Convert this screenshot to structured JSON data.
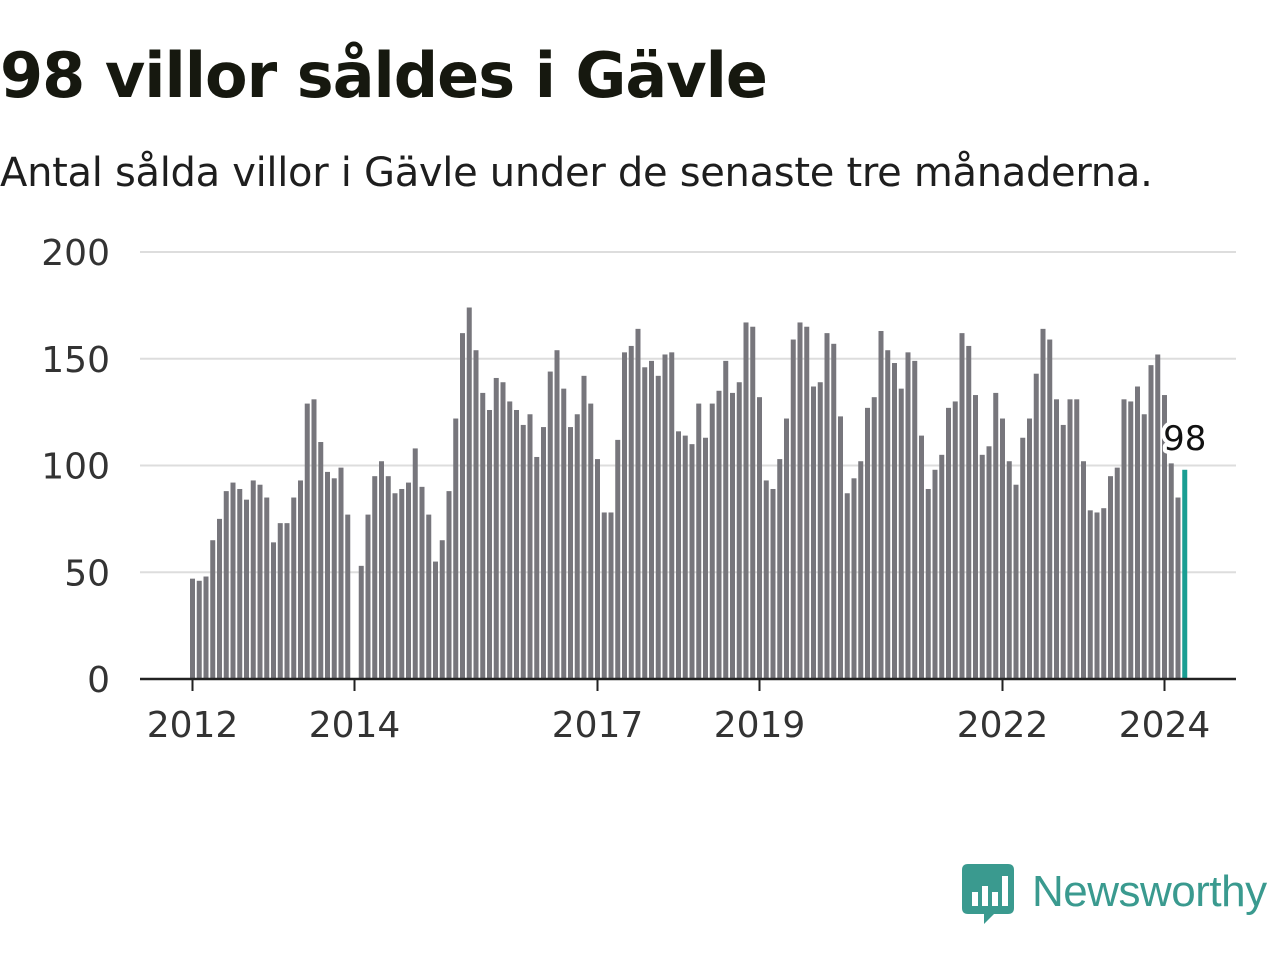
{
  "title": "98 villor såldes i Gävle",
  "subtitle": "Antal sålda villor i Gävle under de senaste tre månaderna.",
  "logo": {
    "text": "Newsworthy",
    "icon": "newsworthy-chart-bubble-icon"
  },
  "colors": {
    "bar": "#77767c",
    "highlight": "#1a9e93",
    "grid": "#dddddd",
    "axis": "#222222",
    "text": "#333333",
    "brand": "#3a9a8f"
  },
  "chart_data": {
    "type": "bar",
    "xlabel": "",
    "ylabel": "",
    "ylim": [
      0,
      200
    ],
    "yticks": [
      0,
      50,
      100,
      150,
      200
    ],
    "grid": true,
    "start": "2012-01",
    "xtick_labels": [
      {
        "label": "2012",
        "index": 0
      },
      {
        "label": "2014",
        "index": 24
      },
      {
        "label": "2017",
        "index": 60
      },
      {
        "label": "2019",
        "index": 84
      },
      {
        "label": "2022",
        "index": 120
      },
      {
        "label": "2024",
        "index": 144
      }
    ],
    "values": [
      47,
      46,
      48,
      65,
      75,
      88,
      92,
      89,
      84,
      93,
      91,
      85,
      64,
      73,
      73,
      85,
      93,
      129,
      131,
      111,
      97,
      94,
      99,
      77,
      0,
      53,
      77,
      95,
      102,
      95,
      87,
      89,
      92,
      108,
      90,
      77,
      55,
      65,
      88,
      122,
      162,
      174,
      154,
      134,
      126,
      141,
      139,
      130,
      126,
      119,
      124,
      104,
      118,
      144,
      154,
      136,
      118,
      124,
      142,
      129,
      103,
      78,
      78,
      112,
      153,
      156,
      164,
      146,
      149,
      142,
      152,
      153,
      116,
      114,
      110,
      129,
      113,
      129,
      135,
      149,
      134,
      139,
      167,
      165,
      132,
      93,
      89,
      103,
      122,
      159,
      167,
      165,
      137,
      139,
      162,
      157,
      123,
      87,
      94,
      102,
      127,
      132,
      163,
      154,
      148,
      136,
      153,
      149,
      114,
      89,
      98,
      105,
      127,
      130,
      162,
      156,
      133,
      105,
      109,
      134,
      122,
      102,
      91,
      113,
      122,
      143,
      164,
      159,
      131,
      119,
      131,
      131,
      102,
      79,
      78,
      80,
      95,
      99,
      131,
      130,
      137,
      124,
      147,
      152,
      133,
      101,
      85,
      98
    ],
    "highlight_index": 147,
    "annotation": {
      "text": "98",
      "index": 147
    }
  }
}
